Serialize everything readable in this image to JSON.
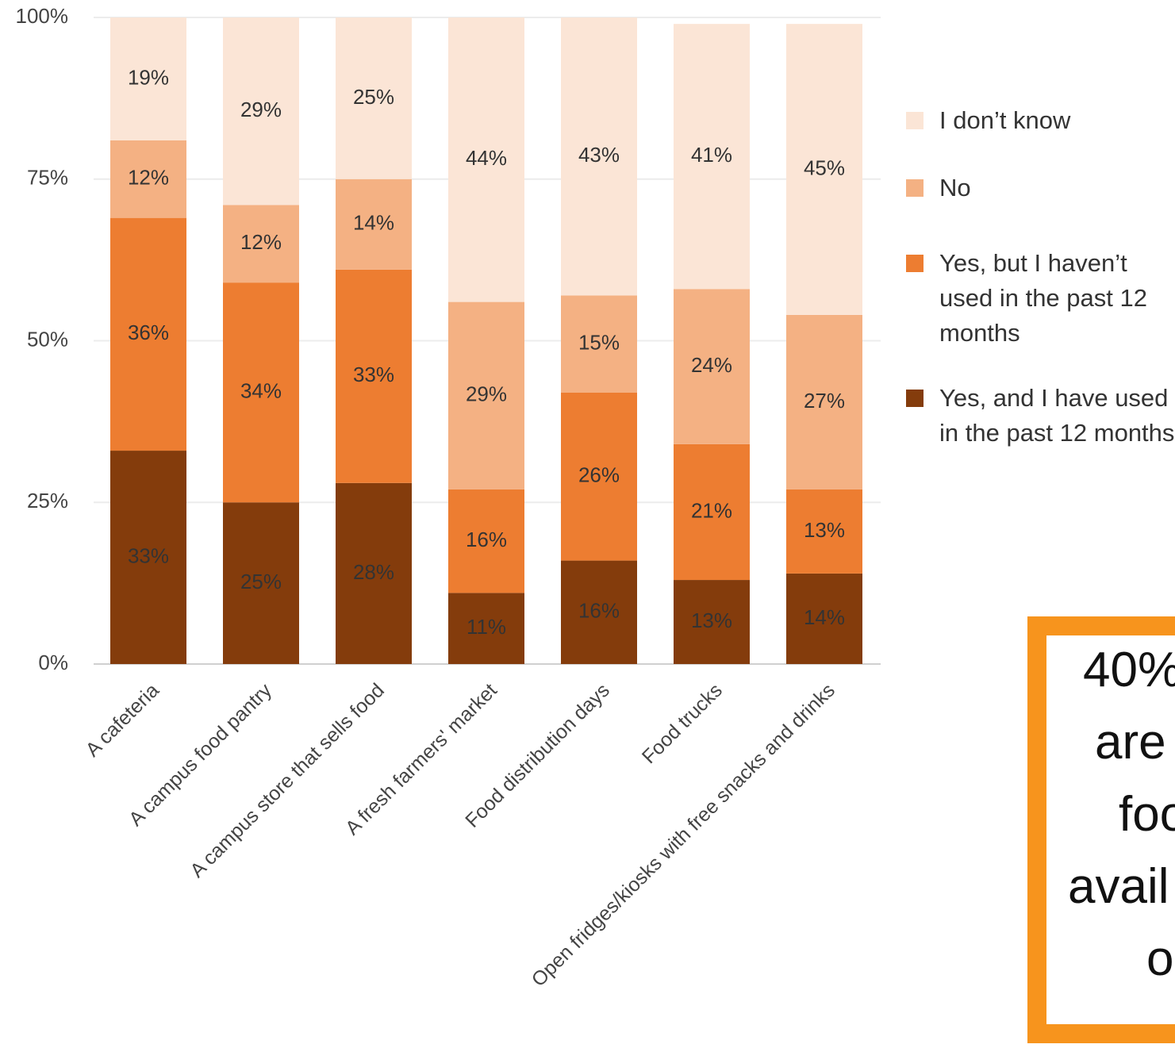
{
  "chart_data": {
    "type": "stacked-bar",
    "categories": [
      "A cafeteria",
      "A campus food pantry",
      "A campus store that sells food",
      "A fresh farmers' market",
      "Food distribution days",
      "Food trucks",
      "Open fridges/kiosks with free snacks and drinks"
    ],
    "series": [
      {
        "name": "Yes, and I have used in the past 12 months",
        "color": "#843c0c",
        "values": [
          33,
          25,
          28,
          11,
          16,
          13,
          14
        ],
        "value_labels": [
          "33%",
          "25%",
          "28%",
          "11%",
          "16%",
          "13%",
          "14%"
        ]
      },
      {
        "name": "Yes, but I haven’t used in the past 12 months",
        "color": "#ed7d31",
        "values": [
          36,
          34,
          33,
          16,
          26,
          21,
          13
        ],
        "value_labels": [
          "36%",
          "34%",
          "33%",
          "16%",
          "26%",
          "21%",
          "13%"
        ]
      },
      {
        "name": "No",
        "color": "#f4b183",
        "values": [
          12,
          12,
          14,
          29,
          15,
          24,
          27
        ],
        "value_labels": [
          "12%",
          "12%",
          "14%",
          "29%",
          "15%",
          "24%",
          "27%"
        ]
      },
      {
        "name": "I don’t know",
        "color": "#fbe5d6",
        "values": [
          19,
          29,
          25,
          44,
          43,
          41,
          45
        ],
        "value_labels": [
          "19%",
          "29%",
          "25%",
          "44%",
          "43%",
          "41%",
          "45%"
        ]
      }
    ],
    "ylim": [
      0,
      100
    ],
    "yticks": [
      {
        "value": 0,
        "label": "0%"
      },
      {
        "value": 25,
        "label": "25%"
      },
      {
        "value": 50,
        "label": "50%"
      },
      {
        "value": 75,
        "label": "75%"
      },
      {
        "value": 100,
        "label": "100%"
      }
    ],
    "grid": true,
    "legend": "right",
    "annotation": {
      "lines": [
        "40%",
        "are",
        "foo",
        "avail",
        "o"
      ],
      "border_color": "#f7941d"
    }
  }
}
